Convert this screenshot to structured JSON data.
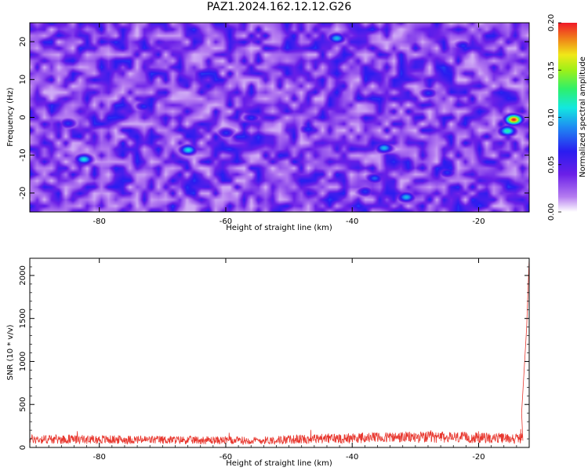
{
  "figure": {
    "title": "PAZ1.2024.162.12.12.G26"
  },
  "chart_data": [
    {
      "type": "heatmap",
      "xlabel": "Height of straight line (km)",
      "ylabel": "Frequency (Hz)",
      "xlim": [
        -91,
        -12
      ],
      "ylim": [
        -25,
        25
      ],
      "xticks": [
        -80,
        -60,
        -40,
        -20
      ],
      "yticks": [
        -20,
        -10,
        0,
        10,
        20
      ],
      "colorbar": {
        "label": "Normalized spectral amplitude",
        "range": [
          0,
          0.2
        ],
        "ticks": [
          "0.00",
          "0.05",
          "0.10",
          "0.15",
          "0.20"
        ]
      },
      "noise_floor": 0.04,
      "hotspots": [
        {
          "x": -14.5,
          "y": -0.5,
          "amp": 0.2
        },
        {
          "x": -15.5,
          "y": -3.5,
          "amp": 0.12
        },
        {
          "x": -66,
          "y": -8.5,
          "amp": 0.11
        },
        {
          "x": -82.5,
          "y": -11,
          "amp": 0.11
        },
        {
          "x": -35,
          "y": -8,
          "amp": 0.1
        },
        {
          "x": -31.5,
          "y": -21,
          "amp": 0.1
        },
        {
          "x": -42.5,
          "y": 21,
          "amp": 0.1
        },
        {
          "x": -36.5,
          "y": -16,
          "amp": 0.08
        },
        {
          "x": -22.5,
          "y": 19,
          "amp": 0.07
        },
        {
          "x": -28,
          "y": 6.5,
          "amp": 0.07
        },
        {
          "x": -25,
          "y": -14.5,
          "amp": 0.07
        },
        {
          "x": -38,
          "y": -19.5,
          "amp": 0.07
        },
        {
          "x": -60,
          "y": -4,
          "amp": 0.07
        },
        {
          "x": -73,
          "y": 3,
          "amp": 0.07
        },
        {
          "x": -85,
          "y": -1.5,
          "amp": 0.07
        },
        {
          "x": -56,
          "y": 0,
          "amp": 0.07
        },
        {
          "x": -47,
          "y": -3,
          "amp": 0.07
        }
      ]
    },
    {
      "type": "line",
      "xlabel": "Height of straight line (km)",
      "ylabel": "SNR (10 * v/v)",
      "xlim": [
        -91,
        -12
      ],
      "ylim": [
        0,
        2200
      ],
      "xticks": [
        -80,
        -60,
        -40,
        -20
      ],
      "yticks": [
        0,
        500,
        1000,
        1500,
        2000
      ],
      "series": [
        {
          "color": "#e8382f",
          "baseline": [
            {
              "x": -91,
              "y": 120
            },
            {
              "x": -70,
              "y": 110
            },
            {
              "x": -55,
              "y": 100
            },
            {
              "x": -45,
              "y": 130
            },
            {
              "x": -30,
              "y": 150
            },
            {
              "x": -20,
              "y": 140
            },
            {
              "x": -13,
              "y": 130
            }
          ],
          "spike": [
            {
              "x": -13.2,
              "y": 400
            },
            {
              "x": -12.8,
              "y": 900
            },
            {
              "x": -12.4,
              "y": 1400
            },
            {
              "x": -12,
              "y": 2200
            }
          ]
        }
      ]
    }
  ]
}
